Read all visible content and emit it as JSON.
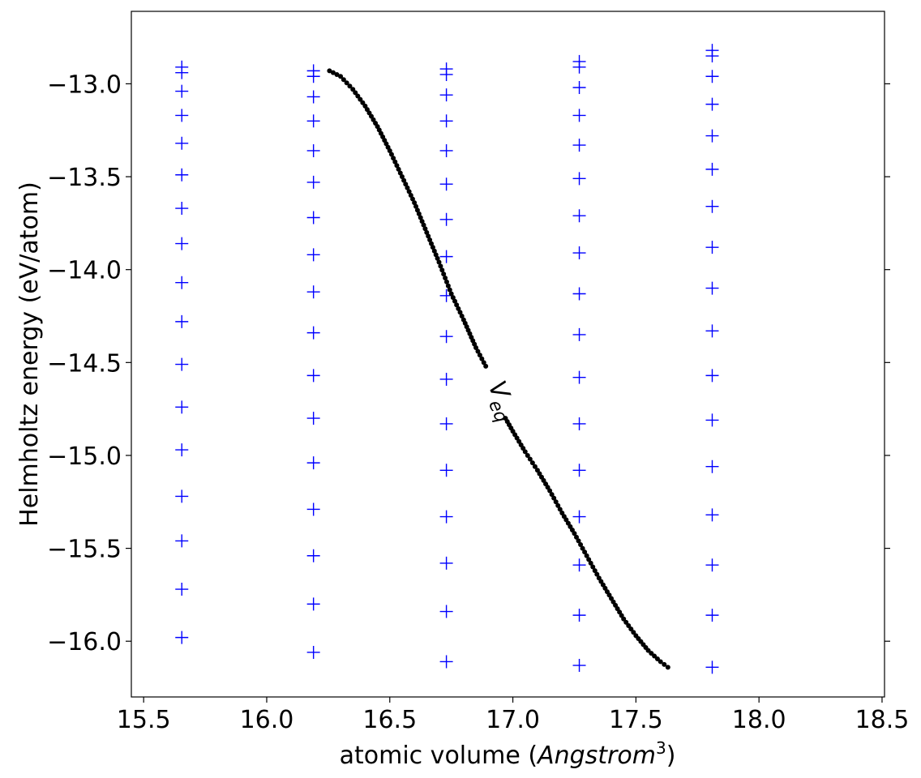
{
  "chart_data": {
    "type": "scatter",
    "xlabel_prefix": "atomic volume (",
    "xlabel_math": "Angstrom",
    "xlabel_sup": "3",
    "xlabel_suffix": ")",
    "ylabel": "Helmholtz energy (eV/atom)",
    "xlim": [
      15.45,
      18.51
    ],
    "ylim": [
      -16.3,
      -12.61
    ],
    "x_ticks": [
      15.5,
      16.0,
      16.5,
      17.0,
      17.5,
      18.0,
      18.5
    ],
    "x_tick_labels": [
      "15.5",
      "16.0",
      "16.5",
      "17.0",
      "17.5",
      "18.0",
      "18.5"
    ],
    "y_ticks": [
      -13.0,
      -13.5,
      -14.0,
      -14.5,
      -15.0,
      -15.5,
      -16.0
    ],
    "y_tick_labels": [
      "−13.0",
      "−13.5",
      "−14.0",
      "−14.5",
      "−15.0",
      "−15.5",
      "−16.0"
    ],
    "grid": false,
    "annotation": {
      "text_main": "V",
      "text_sub": "eq",
      "x": 16.93,
      "y": -14.72,
      "rotation_deg": 67
    },
    "series": [
      {
        "marker": "plus",
        "color": "#0000ff",
        "columns": [
          {
            "x": 15.655,
            "y": [
              -12.91,
              -12.94,
              -13.04,
              -13.17,
              -13.32,
              -13.49,
              -13.67,
              -13.86,
              -14.07,
              -14.28,
              -14.51,
              -14.74,
              -14.97,
              -15.22,
              -15.46,
              -15.72,
              -15.98
            ]
          },
          {
            "x": 16.19,
            "y": [
              -12.93,
              -12.96,
              -13.07,
              -13.2,
              -13.36,
              -13.53,
              -13.72,
              -13.92,
              -14.12,
              -14.34,
              -14.57,
              -14.8,
              -15.04,
              -15.29,
              -15.54,
              -15.8,
              -16.06
            ]
          },
          {
            "x": 16.73,
            "y": [
              -12.92,
              -12.95,
              -13.06,
              -13.2,
              -13.36,
              -13.54,
              -13.73,
              -13.93,
              -14.14,
              -14.36,
              -14.59,
              -14.83,
              -15.08,
              -15.33,
              -15.58,
              -15.84,
              -16.11
            ]
          },
          {
            "x": 17.27,
            "y": [
              -12.88,
              -12.91,
              -13.02,
              -13.17,
              -13.33,
              -13.51,
              -13.71,
              -13.91,
              -14.13,
              -14.35,
              -14.58,
              -14.83,
              -15.08,
              -15.33,
              -15.59,
              -15.86,
              -16.13
            ]
          },
          {
            "x": 17.81,
            "y": [
              -12.82,
              -12.85,
              -12.96,
              -13.11,
              -13.28,
              -13.46,
              -13.66,
              -13.88,
              -14.1,
              -14.33,
              -14.57,
              -14.81,
              -15.06,
              -15.32,
              -15.59,
              -15.86,
              -16.14
            ]
          }
        ]
      },
      {
        "marker": "dot",
        "color": "#000000",
        "segments": [
          [
            [
              16.255,
              -12.93
            ],
            [
              16.3,
              -12.96
            ],
            [
              16.35,
              -13.03
            ],
            [
              16.4,
              -13.12
            ],
            [
              16.45,
              -13.23
            ],
            [
              16.5,
              -13.36
            ],
            [
              16.55,
              -13.5
            ],
            [
              16.6,
              -13.64
            ],
            [
              16.65,
              -13.8
            ],
            [
              16.7,
              -13.96
            ],
            [
              16.75,
              -14.13
            ],
            [
              16.8,
              -14.27
            ],
            [
              16.85,
              -14.42
            ],
            [
              16.89,
              -14.52
            ]
          ],
          [
            [
              16.97,
              -14.8
            ],
            [
              17.0,
              -14.87
            ],
            [
              17.05,
              -14.98
            ],
            [
              17.1,
              -15.08
            ],
            [
              17.15,
              -15.19
            ],
            [
              17.2,
              -15.31
            ],
            [
              17.25,
              -15.42
            ],
            [
              17.3,
              -15.54
            ],
            [
              17.35,
              -15.66
            ],
            [
              17.4,
              -15.77
            ],
            [
              17.45,
              -15.88
            ],
            [
              17.5,
              -15.97
            ],
            [
              17.55,
              -16.05
            ],
            [
              17.6,
              -16.11
            ],
            [
              17.63,
              -16.14
            ]
          ]
        ]
      }
    ]
  }
}
